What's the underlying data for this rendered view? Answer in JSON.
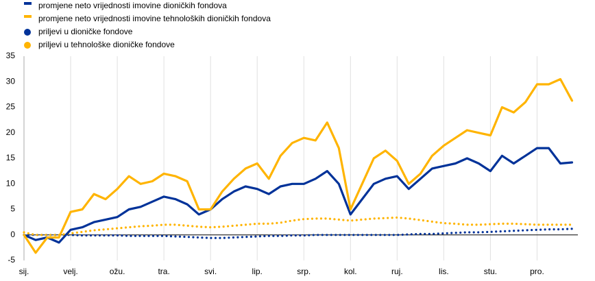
{
  "chart_data": {
    "type": "line",
    "categories": [
      "sij.",
      null,
      null,
      null,
      "velj.",
      null,
      null,
      null,
      "ožu.",
      null,
      null,
      null,
      "tra.",
      null,
      null,
      null,
      "svi.",
      null,
      null,
      null,
      "lip.",
      null,
      null,
      null,
      "srp.",
      null,
      null,
      null,
      "kol.",
      null,
      null,
      null,
      "ruj.",
      null,
      null,
      null,
      "lis.",
      null,
      null,
      null,
      "stu.",
      null,
      null,
      null,
      "pro.",
      null,
      null,
      null
    ],
    "series": [
      {
        "name": "promjene neto vrijednosti imovine dioničkih fondova",
        "color": "#003299",
        "style": "line",
        "values": [
          0,
          -1,
          -0.5,
          -1.5,
          1,
          1.5,
          2.5,
          3,
          3.5,
          5,
          5.5,
          6.5,
          7.5,
          7,
          6,
          4,
          5,
          7,
          8.5,
          9.5,
          9,
          8,
          9.5,
          10,
          10,
          11,
          12.5,
          10,
          4,
          7,
          10,
          11,
          11.5,
          9,
          11,
          13,
          13.5,
          14,
          15,
          14,
          12.5,
          15.5,
          14,
          15.5,
          17,
          17,
          14,
          14.2
        ]
      },
      {
        "name": "promjene neto vrijednosti imovine tehnoloških dioničkih fondova",
        "color": "#ffb400",
        "style": "line",
        "values": [
          0,
          -3.5,
          -0.5,
          -0.5,
          4.5,
          5,
          8,
          7,
          9,
          11.5,
          10,
          10.5,
          12,
          11.5,
          10.5,
          5,
          5,
          8.5,
          11,
          13,
          14,
          11,
          15.5,
          18,
          19,
          18.5,
          22,
          17,
          5,
          10,
          15,
          16.5,
          14.5,
          10,
          12,
          15.5,
          17.5,
          19,
          20.5,
          20,
          19.5,
          25,
          24,
          26,
          29.5,
          29.5,
          30.5,
          26.3
        ]
      },
      {
        "name": "priljevi u dioničke fondove",
        "color": "#003299",
        "style": "dots",
        "values": [
          0,
          0,
          0,
          0,
          0,
          -0.1,
          -0.1,
          -0.1,
          -0.1,
          -0.2,
          -0.2,
          -0.2,
          -0.2,
          -0.3,
          -0.4,
          -0.5,
          -0.6,
          -0.6,
          -0.5,
          -0.4,
          -0.3,
          -0.2,
          -0.2,
          -0.1,
          -0.1,
          0,
          0,
          0,
          0,
          0,
          0,
          0,
          0,
          0.1,
          0.2,
          0.2,
          0.3,
          0.4,
          0.5,
          0.5,
          0.6,
          0.7,
          0.8,
          0.9,
          1,
          1.1,
          1.1,
          1.2
        ]
      },
      {
        "name": "priljevi u tehnološke dioničke fondove",
        "color": "#ffb400",
        "style": "dots",
        "values": [
          0.5,
          0,
          0,
          0,
          0.3,
          0.6,
          0.9,
          1.1,
          1.3,
          1.5,
          1.7,
          1.8,
          2,
          2,
          1.8,
          1.6,
          1.5,
          1.6,
          1.8,
          2,
          2.2,
          2.2,
          2.4,
          2.8,
          3.1,
          3.2,
          3.2,
          3,
          2.8,
          3,
          3.2,
          3.3,
          3.4,
          3.2,
          2.9,
          2.6,
          2.3,
          2.2,
          2,
          2,
          2.1,
          2.2,
          2.2,
          2.1,
          2,
          2,
          2,
          2
        ]
      }
    ],
    "ylim": [
      -5,
      35
    ],
    "yticks": [
      -5,
      0,
      5,
      10,
      15,
      20,
      25,
      30,
      35
    ],
    "grid": true
  }
}
